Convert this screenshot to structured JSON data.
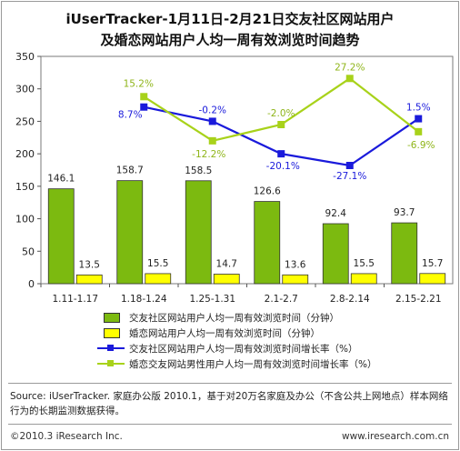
{
  "title_line1": "iUserTracker-1月11日-2月21日交友社区网站用户",
  "title_line2": "及婚恋网站用户人均一周有效浏览时间趋势",
  "source_text": "Source: iUserTracker. 家庭办公版 2010.1，基于对20万名家庭及办公（不含公共上网地点）样本网络行为的长期监测数据获得。",
  "copyright": "©2010.3 iResearch Inc.",
  "website": "www.iresearch.com.cn",
  "colors": {
    "bar1": "#7cba10",
    "bar2": "#ffff00",
    "line1": "#1a1adb",
    "line2": "#a8d21a"
  },
  "chart_data": {
    "type": "bar",
    "categories": [
      "1.11-1.17",
      "1.18-1.24",
      "1.25-1.31",
      "2.1-2.7",
      "2.8-2.14",
      "2.15-2.21"
    ],
    "ylim": [
      0,
      350
    ],
    "yticks": [
      0,
      50,
      100,
      150,
      200,
      250,
      300,
      350
    ],
    "series": [
      {
        "name": "交友社区网站用户人均一周有效浏览时间（分钟）",
        "type": "bar",
        "values": [
          146.1,
          158.7,
          158.5,
          126.6,
          92.4,
          93.7
        ],
        "labels": [
          "146.1",
          "158.7",
          "158.5",
          "126.6",
          "92.4",
          "93.7"
        ]
      },
      {
        "name": "婚恋网站用户人均一周有效浏览时间（分钟）",
        "type": "bar",
        "values": [
          13.5,
          15.5,
          14.7,
          13.6,
          15.5,
          15.7
        ],
        "labels": [
          "13.5",
          "15.5",
          "14.7",
          "13.6",
          "15.5",
          "15.7"
        ]
      },
      {
        "name": "交友社区网站用户人均一周有效浏览时间增长率（%）",
        "type": "line",
        "values": [
          null,
          272,
          250,
          200,
          182,
          254
        ],
        "labels": [
          "",
          "8.7%",
          "-0.2%",
          "-20.1%",
          "-27.1%",
          "1.5%"
        ]
      },
      {
        "name": "婚恋交友网站男性用户人均一周有效浏览时间增长率（%）",
        "type": "line",
        "values": [
          null,
          288,
          220,
          245,
          316,
          234
        ],
        "labels": [
          "",
          "15.2%",
          "-12.2%",
          "-2.0%",
          "27.2%",
          "-6.9%"
        ]
      }
    ]
  }
}
